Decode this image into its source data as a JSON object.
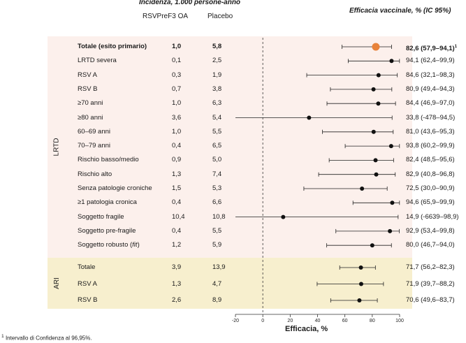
{
  "header": {
    "incidence_title": "Incidenza, 1.000 persone-anno",
    "col_vaccine": "RSVPreF3 OA",
    "col_placebo": "Placebo",
    "efficacy_title": "Efficacia vaccinale, % (IC 95%)"
  },
  "groups": {
    "lrtd": "LRTD",
    "ari": "ARI"
  },
  "rows": [
    {
      "label": "Totale (esito primario)",
      "vaccine": "1,0",
      "placebo": "5,8",
      "ci_text": "82,6 (57,9–94,1)",
      "ci_sup": "1",
      "group": "LRTD",
      "bold": true
    },
    {
      "label": "LRTD severa",
      "vaccine": "0,1",
      "placebo": "2,5",
      "ci_text": "94,1 (62,4–99,9)",
      "group": "LRTD"
    },
    {
      "label": "RSV A",
      "vaccine": "0,3",
      "placebo": "1,9",
      "ci_text": "84,6 (32,1–98,3)",
      "group": "LRTD"
    },
    {
      "label": "RSV B",
      "vaccine": "0,7",
      "placebo": "3,8",
      "ci_text": "80,9 (49,4–94,3)",
      "group": "LRTD"
    },
    {
      "label": "≥70 anni",
      "vaccine": "1,0",
      "placebo": "6,3",
      "ci_text": "84,4 (46,9–97,0)",
      "group": "LRTD"
    },
    {
      "label": "≥80 anni",
      "vaccine": "3,6",
      "placebo": "5,4",
      "ci_text": "33,8 (-478–94,5)",
      "group": "LRTD"
    },
    {
      "label": "60–69 anni",
      "vaccine": "1,0",
      "placebo": "5,5",
      "ci_text": "81,0 (43,6–95,3)",
      "group": "LRTD"
    },
    {
      "label": "70–79 anni",
      "vaccine": "0,4",
      "placebo": "6,5",
      "ci_text": "93,8 (60,2–99,9)",
      "group": "LRTD"
    },
    {
      "label": "Rischio basso/medio",
      "vaccine": "0,9",
      "placebo": "5,0",
      "ci_text": "82,4 (48,5–95,6)",
      "group": "LRTD"
    },
    {
      "label": "Rischio alto",
      "vaccine": "1,3",
      "placebo": "7,4",
      "ci_text": "82,9 (40,8–96,8)",
      "group": "LRTD"
    },
    {
      "label": "Senza patologie croniche",
      "vaccine": "1,5",
      "placebo": "5,3",
      "ci_text": "72,5 (30,0–90,9)",
      "group": "LRTD"
    },
    {
      "label": "≥1 patologia cronica",
      "vaccine": "0,4",
      "placebo": "6,6",
      "ci_text": "94,6 (65,9–99,9)",
      "group": "LRTD"
    },
    {
      "label": "Soggetto fragile",
      "vaccine": "10,4",
      "placebo": "10,8",
      "ci_text": "14,9 (-6639–98,9)",
      "group": "LRTD"
    },
    {
      "label": "Soggetto pre-fragile",
      "vaccine": "0,4",
      "placebo": "5,5",
      "ci_text": "92,9 (53,4–99,8)",
      "group": "LRTD"
    },
    {
      "label": "Soggetto robusto (",
      "label_italic": "fit",
      "label_end": ")",
      "vaccine": "1,2",
      "placebo": "5,9",
      "ci_text": "80,0 (46,7–94,0)",
      "group": "LRTD"
    },
    {
      "label": "Totale",
      "vaccine": "3,9",
      "placebo": "13,9",
      "ci_text": "71,7 (56,2–82,3)",
      "group": "ARI"
    },
    {
      "label": "RSV A",
      "vaccine": "1,3",
      "placebo": "4,7",
      "ci_text": "71,9 (39,7–88,2)",
      "group": "ARI"
    },
    {
      "label": "RSV B",
      "vaccine": "2,6",
      "placebo": "8,9",
      "ci_text": "70,6 (49,6–83,7)",
      "group": "ARI"
    }
  ],
  "chart_data": {
    "type": "forest",
    "title": "Efficacia vaccinale, % (IC 95%)",
    "xlabel": "Efficacia, %",
    "xlim": [
      -20,
      100
    ],
    "xticks": [
      -20,
      0,
      20,
      40,
      60,
      80,
      100
    ],
    "xtick_labels": [
      "-20",
      "0",
      "20",
      "40",
      "60",
      "80",
      "100"
    ],
    "reference_line": 0,
    "points": [
      {
        "name": "Totale (esito primario)",
        "estimate": 82.6,
        "low": 57.9,
        "high": 94.1,
        "highlight": true
      },
      {
        "name": "LRTD severa",
        "estimate": 94.1,
        "low": 62.4,
        "high": 99.9
      },
      {
        "name": "RSV A",
        "estimate": 84.6,
        "low": 32.1,
        "high": 98.3
      },
      {
        "name": "RSV B",
        "estimate": 80.9,
        "low": 49.4,
        "high": 94.3
      },
      {
        "name": "≥70 anni",
        "estimate": 84.4,
        "low": 46.9,
        "high": 97.0
      },
      {
        "name": "≥80 anni",
        "estimate": 33.8,
        "low": -478,
        "high": 94.5
      },
      {
        "name": "60–69 anni",
        "estimate": 81.0,
        "low": 43.6,
        "high": 95.3
      },
      {
        "name": "70–79 anni",
        "estimate": 93.8,
        "low": 60.2,
        "high": 99.9
      },
      {
        "name": "Rischio basso/medio",
        "estimate": 82.4,
        "low": 48.5,
        "high": 95.6
      },
      {
        "name": "Rischio alto",
        "estimate": 82.9,
        "low": 40.8,
        "high": 96.8
      },
      {
        "name": "Senza patologie croniche",
        "estimate": 72.5,
        "low": 30.0,
        "high": 90.9
      },
      {
        "name": "≥1 patologia cronica",
        "estimate": 94.6,
        "low": 65.9,
        "high": 99.9
      },
      {
        "name": "Soggetto fragile",
        "estimate": 14.9,
        "low": -6639,
        "high": 98.9
      },
      {
        "name": "Soggetto pre-fragile",
        "estimate": 92.9,
        "low": 53.4,
        "high": 99.8
      },
      {
        "name": "Soggetto robusto (fit)",
        "estimate": 80.0,
        "low": 46.7,
        "high": 94.0
      },
      {
        "name": "ARI Totale",
        "estimate": 71.7,
        "low": 56.2,
        "high": 82.3
      },
      {
        "name": "ARI RSV A",
        "estimate": 71.9,
        "low": 39.7,
        "high": 88.2
      },
      {
        "name": "ARI RSV B",
        "estimate": 70.6,
        "low": 49.6,
        "high": 83.7
      }
    ],
    "colors": {
      "highlight": "#e8823a",
      "point": "#111111",
      "line": "#222222"
    }
  },
  "footnote": {
    "sup": "1",
    "text": "Intervallo di Confidenza al 96,95%."
  }
}
